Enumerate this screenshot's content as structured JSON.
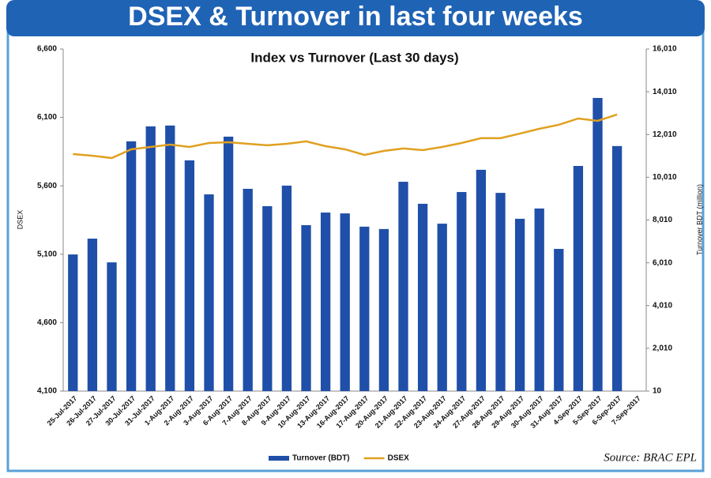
{
  "chart_data": {
    "type": "bar_line",
    "banner": "DSEX & Turnover in last four weeks",
    "title": "Index vs Turnover (Last 30 days)",
    "ylabel": "DSEX",
    "y2label": "Turnover BDT (million)",
    "source": "Source: BRAC EPL",
    "categories": [
      "25-Jul-2017",
      "26-Jul-2017",
      "27-Jul-2017",
      "30-Jul-2017",
      "31-Jul-2017",
      "1-Aug-2017",
      "2-Aug-2017",
      "3-Aug-2017",
      "6-Aug-2017",
      "7-Aug-2017",
      "8-Aug-2017",
      "9-Aug-2017",
      "10-Aug-2017",
      "13-Aug-2017",
      "16-Aug-2017",
      "17-Aug-2017",
      "20-Aug-2017",
      "21-Aug-2017",
      "22-Aug-2017",
      "23-Aug-2017",
      "24-Aug-2017",
      "27-Aug-2017",
      "28-Aug-2017",
      "29-Aug-2017",
      "30-Aug-2017",
      "31-Aug-2017",
      "4-Sep-2017",
      "5-Sep-2017",
      "6-Sep-2017",
      "7-Sep-2017"
    ],
    "series": [
      {
        "name": "Turnover (BDT)",
        "type": "bar",
        "axis": "y2",
        "color": "#1f4fa8",
        "values": [
          6400,
          7140,
          6030,
          11690,
          12390,
          12430,
          10800,
          9210,
          11910,
          9470,
          8660,
          9620,
          7770,
          8360,
          8320,
          7700,
          7590,
          9800,
          8770,
          7840,
          9320,
          10360,
          9280,
          8070,
          8550,
          6660,
          10540,
          13720,
          11470,
          null
        ]
      },
      {
        "name": "DSEX",
        "type": "line",
        "axis": "y",
        "color": "#e0a020",
        "values": [
          5832,
          5820,
          5803,
          5867,
          5884,
          5901,
          5884,
          5913,
          5919,
          5907,
          5896,
          5907,
          5925,
          5890,
          5867,
          5826,
          5855,
          5873,
          5861,
          5884,
          5913,
          5948,
          5948,
          5982,
          6017,
          6046,
          6092,
          6075,
          6121,
          null
        ]
      }
    ],
    "ylim": [
      4100,
      6600
    ],
    "yticks": [
      {
        "value": 4100,
        "label": "4,100"
      },
      {
        "value": 4600,
        "label": "4,600"
      },
      {
        "value": 5100,
        "label": "5,100"
      },
      {
        "value": 5600,
        "label": "5,600"
      },
      {
        "value": 6100,
        "label": "6,100"
      },
      {
        "value": 6600,
        "label": "6,600"
      }
    ],
    "y2lim": [
      10,
      16010
    ],
    "y2ticks": [
      10,
      {
        "value": 2010,
        "label": "2,010"
      },
      {
        "value": 4010,
        "label": "4,010"
      },
      {
        "value": 6010,
        "label": "6,010"
      },
      {
        "value": 8010,
        "label": "8,010"
      },
      {
        "value": 10010,
        "label": "10,010"
      },
      {
        "value": 12010,
        "label": "12,010"
      },
      {
        "value": 14010,
        "label": "14,010"
      },
      {
        "value": 16010,
        "label": "16,010"
      }
    ],
    "legend": "bottom"
  }
}
